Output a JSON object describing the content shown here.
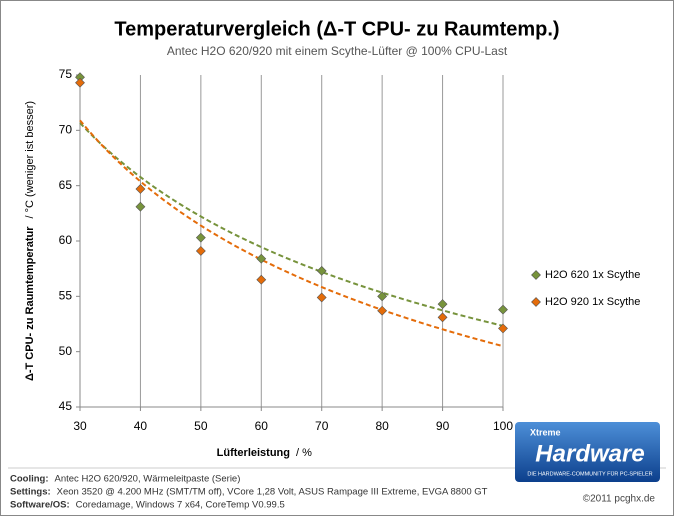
{
  "chart_data": {
    "type": "scatter",
    "title": "Temperaturvergleich  (Δ-T CPU- zu Raumtemp.)",
    "subtitle": "Antec H2O 620/920  mit einem Scythe-Lüfter @ 100% CPU-Last",
    "x_label": "Lüfterleistung",
    "x_unit": "/ %",
    "y_label": "Δ-T CPU- zu Raumtemperatur",
    "y_unit": "/ °C (weniger ist besser)",
    "x": [
      30,
      40,
      50,
      60,
      70,
      80,
      90,
      100
    ],
    "series": [
      {
        "name": "H2O 620 1x Scythe",
        "color": "#77933c",
        "values": [
          74.8,
          63.1,
          60.3,
          58.4,
          57.3,
          55.0,
          54.3,
          53.8
        ]
      },
      {
        "name": "H2O 920 1x Scythe",
        "color": "#e46c0a",
        "values": [
          74.3,
          64.7,
          59.1,
          56.5,
          54.9,
          53.7,
          53.1,
          52.1
        ]
      }
    ],
    "trendline": "power",
    "grid": "x",
    "legend": "right",
    "xlim": [
      30,
      100
    ],
    "xticks": [
      30,
      40,
      50,
      60,
      70,
      80,
      90,
      100
    ],
    "ylim": [
      45,
      75
    ],
    "yticks": [
      45,
      50,
      55,
      60,
      65,
      70,
      75
    ]
  },
  "footer": {
    "rows": [
      [
        "Cooling:",
        "Antec H2O 620/920, Wärmeleitpaste (Serie)"
      ],
      [
        "Settings:",
        "Xeon 3520 @ 4.200 MHz (SMT/TM off), VCore 1,28 Volt, ASUS Rampage III Extreme, EVGA 8800 GT"
      ],
      [
        "Software/OS:",
        "Coredamage, Windows 7 x64, CoreTemp V0.99.5"
      ]
    ],
    "copyright": "©2011 pcghx.de",
    "logo": {
      "small": "Xtreme",
      "big": "Hardware",
      "tagline": "DIE HARDWARE-COMMUNITY FÜR PC-SPIELER"
    }
  }
}
